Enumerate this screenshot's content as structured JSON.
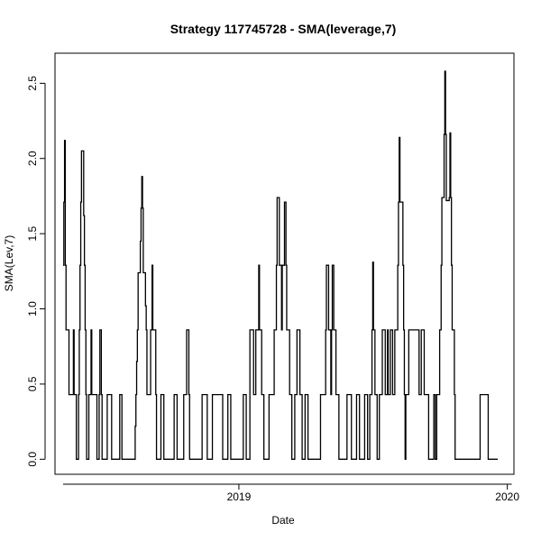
{
  "chart_data": {
    "type": "line",
    "style": "step",
    "title": "Strategy 117745728 - SMA(leverage,7)",
    "xlabel": "Date",
    "ylabel": "SMA(Lev,7)",
    "x_domain": [
      "2018-05-07",
      "2020-01-07"
    ],
    "xlim": [
      "2018-04-26",
      "2020-01-10"
    ],
    "ylim": [
      -0.1,
      2.7
    ],
    "x_ticks": [
      {
        "date": "2019-01-01",
        "label": "2019"
      },
      {
        "date": "2020-01-01",
        "label": "2020"
      }
    ],
    "y_ticks": [
      {
        "value": 0.0,
        "label": "0.0"
      },
      {
        "value": 0.5,
        "label": "0.5"
      },
      {
        "value": 1.0,
        "label": "1.0"
      },
      {
        "value": 1.5,
        "label": "1.5"
      },
      {
        "value": 2.0,
        "label": "2.0"
      },
      {
        "value": 2.5,
        "label": "2.5"
      }
    ],
    "series_color": "#000000",
    "points": [
      [
        "2018-05-07",
        1.29
      ],
      [
        "2018-05-08",
        1.71
      ],
      [
        "2018-05-09",
        2.12
      ],
      [
        "2018-05-10",
        1.29
      ],
      [
        "2018-05-11",
        0.86
      ],
      [
        "2018-05-14",
        0.86
      ],
      [
        "2018-05-15",
        0.43
      ],
      [
        "2018-05-21",
        0.86
      ],
      [
        "2018-05-22",
        0.43
      ],
      [
        "2018-05-25",
        0.0
      ],
      [
        "2018-05-28",
        0.43
      ],
      [
        "2018-05-29",
        0.86
      ],
      [
        "2018-05-30",
        1.29
      ],
      [
        "2018-05-31",
        1.71
      ],
      [
        "2018-06-01",
        2.05
      ],
      [
        "2018-06-04",
        1.62
      ],
      [
        "2018-06-05",
        1.29
      ],
      [
        "2018-06-06",
        0.86
      ],
      [
        "2018-06-07",
        0.43
      ],
      [
        "2018-06-08",
        0.0
      ],
      [
        "2018-06-11",
        0.43
      ],
      [
        "2018-06-14",
        0.86
      ],
      [
        "2018-06-15",
        0.43
      ],
      [
        "2018-06-22",
        0.0
      ],
      [
        "2018-06-25",
        0.43
      ],
      [
        "2018-06-26",
        0.86
      ],
      [
        "2018-06-28",
        0.43
      ],
      [
        "2018-06-29",
        0.0
      ],
      [
        "2018-07-06",
        0.43
      ],
      [
        "2018-07-12",
        0.0
      ],
      [
        "2018-07-23",
        0.43
      ],
      [
        "2018-07-26",
        0.0
      ],
      [
        "2018-08-10",
        0.0
      ],
      [
        "2018-08-13",
        0.22
      ],
      [
        "2018-08-14",
        0.43
      ],
      [
        "2018-08-15",
        0.65
      ],
      [
        "2018-08-16",
        0.86
      ],
      [
        "2018-08-17",
        1.24
      ],
      [
        "2018-08-20",
        1.45
      ],
      [
        "2018-08-21",
        1.67
      ],
      [
        "2018-08-22",
        1.88
      ],
      [
        "2018-08-23",
        1.67
      ],
      [
        "2018-08-24",
        1.24
      ],
      [
        "2018-08-27",
        1.02
      ],
      [
        "2018-08-28",
        0.86
      ],
      [
        "2018-08-29",
        0.43
      ],
      [
        "2018-09-03",
        0.86
      ],
      [
        "2018-09-05",
        1.29
      ],
      [
        "2018-09-06",
        0.86
      ],
      [
        "2018-09-10",
        0.43
      ],
      [
        "2018-09-11",
        0.0
      ],
      [
        "2018-09-17",
        0.43
      ],
      [
        "2018-09-21",
        0.0
      ],
      [
        "2018-10-05",
        0.43
      ],
      [
        "2018-10-09",
        0.0
      ],
      [
        "2018-10-18",
        0.43
      ],
      [
        "2018-10-22",
        0.86
      ],
      [
        "2018-10-25",
        0.43
      ],
      [
        "2018-10-26",
        0.0
      ],
      [
        "2018-11-12",
        0.43
      ],
      [
        "2018-11-19",
        0.0
      ],
      [
        "2018-11-26",
        0.43
      ],
      [
        "2018-12-10",
        0.0
      ],
      [
        "2018-12-17",
        0.43
      ],
      [
        "2018-12-21",
        0.0
      ],
      [
        "2019-01-07",
        0.43
      ],
      [
        "2019-01-11",
        0.0
      ],
      [
        "2019-01-16",
        0.86
      ],
      [
        "2019-01-21",
        0.43
      ],
      [
        "2019-01-24",
        0.86
      ],
      [
        "2019-01-28",
        1.29
      ],
      [
        "2019-01-29",
        0.86
      ],
      [
        "2019-02-01",
        0.43
      ],
      [
        "2019-02-04",
        0.0
      ],
      [
        "2019-02-11",
        0.43
      ],
      [
        "2019-02-18",
        0.86
      ],
      [
        "2019-02-21",
        1.29
      ],
      [
        "2019-02-22",
        1.74
      ],
      [
        "2019-02-25",
        1.29
      ],
      [
        "2019-02-28",
        0.86
      ],
      [
        "2019-03-01",
        1.29
      ],
      [
        "2019-03-04",
        1.71
      ],
      [
        "2019-03-06",
        1.29
      ],
      [
        "2019-03-07",
        0.86
      ],
      [
        "2019-03-11",
        0.43
      ],
      [
        "2019-03-14",
        0.0
      ],
      [
        "2019-03-18",
        0.43
      ],
      [
        "2019-03-21",
        0.86
      ],
      [
        "2019-03-25",
        0.43
      ],
      [
        "2019-03-28",
        0.0
      ],
      [
        "2019-04-01",
        0.43
      ],
      [
        "2019-04-05",
        0.0
      ],
      [
        "2019-04-22",
        0.43
      ],
      [
        "2019-04-29",
        0.86
      ],
      [
        "2019-04-30",
        1.29
      ],
      [
        "2019-05-03",
        0.86
      ],
      [
        "2019-05-06",
        0.43
      ],
      [
        "2019-05-07",
        0.86
      ],
      [
        "2019-05-08",
        1.29
      ],
      [
        "2019-05-10",
        0.86
      ],
      [
        "2019-05-13",
        0.43
      ],
      [
        "2019-05-17",
        0.0
      ],
      [
        "2019-05-28",
        0.43
      ],
      [
        "2019-06-03",
        0.0
      ],
      [
        "2019-06-10",
        0.43
      ],
      [
        "2019-06-14",
        0.0
      ],
      [
        "2019-06-21",
        0.43
      ],
      [
        "2019-06-25",
        0.0
      ],
      [
        "2019-06-28",
        0.43
      ],
      [
        "2019-07-01",
        0.86
      ],
      [
        "2019-07-02",
        1.31
      ],
      [
        "2019-07-03",
        0.86
      ],
      [
        "2019-07-05",
        0.43
      ],
      [
        "2019-07-08",
        0.0
      ],
      [
        "2019-07-11",
        0.43
      ],
      [
        "2019-07-15",
        0.86
      ],
      [
        "2019-07-19",
        0.43
      ],
      [
        "2019-07-22",
        0.86
      ],
      [
        "2019-07-23",
        0.43
      ],
      [
        "2019-07-26",
        0.86
      ],
      [
        "2019-07-29",
        0.43
      ],
      [
        "2019-08-01",
        0.86
      ],
      [
        "2019-08-05",
        1.29
      ],
      [
        "2019-08-06",
        1.71
      ],
      [
        "2019-08-07",
        2.14
      ],
      [
        "2019-08-08",
        1.71
      ],
      [
        "2019-08-12",
        1.29
      ],
      [
        "2019-08-13",
        0.86
      ],
      [
        "2019-08-14",
        0.43
      ],
      [
        "2019-08-15",
        0.0
      ],
      [
        "2019-08-16",
        0.43
      ],
      [
        "2019-08-20",
        0.86
      ],
      [
        "2019-09-03",
        0.43
      ],
      [
        "2019-09-06",
        0.86
      ],
      [
        "2019-09-10",
        0.43
      ],
      [
        "2019-09-16",
        0.0
      ],
      [
        "2019-09-23",
        0.43
      ],
      [
        "2019-09-25",
        0.0
      ],
      [
        "2019-09-27",
        0.43
      ],
      [
        "2019-10-01",
        0.86
      ],
      [
        "2019-10-03",
        1.29
      ],
      [
        "2019-10-04",
        1.74
      ],
      [
        "2019-10-07",
        2.16
      ],
      [
        "2019-10-08",
        2.58
      ],
      [
        "2019-10-09",
        2.16
      ],
      [
        "2019-10-10",
        1.72
      ],
      [
        "2019-10-14",
        1.74
      ],
      [
        "2019-10-15",
        2.17
      ],
      [
        "2019-10-16",
        1.74
      ],
      [
        "2019-10-17",
        1.29
      ],
      [
        "2019-10-18",
        0.86
      ],
      [
        "2019-10-21",
        0.43
      ],
      [
        "2019-10-22",
        0.0
      ],
      [
        "2019-11-25",
        0.43
      ],
      [
        "2019-12-06",
        0.0
      ],
      [
        "2019-12-19",
        0.0
      ]
    ]
  }
}
